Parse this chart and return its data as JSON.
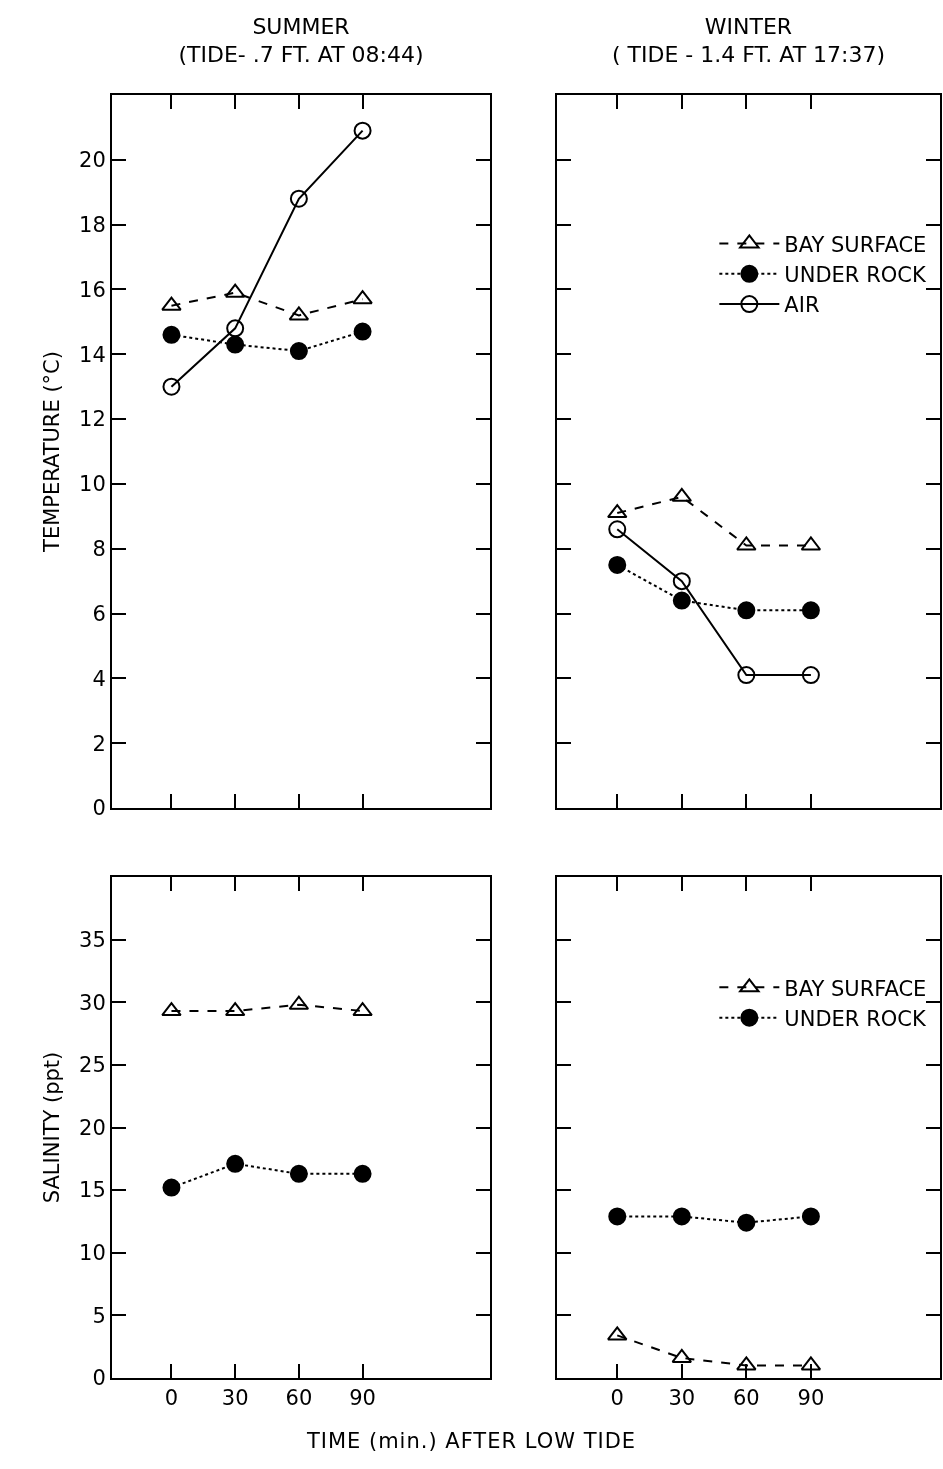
{
  "chart_data": [
    {
      "type": "line",
      "title": "SUMMER",
      "subtitle": "(TIDE- .7 FT. AT 08:44)",
      "ylabel": "TEMPERATURE (°C)",
      "x": [
        0,
        30,
        60,
        90
      ],
      "xlim": [
        -28,
        150
      ],
      "xticks": [
        0,
        30,
        60,
        90
      ],
      "ylim": [
        0,
        22
      ],
      "yticks": [
        0,
        2,
        4,
        6,
        8,
        10,
        12,
        14,
        16,
        18,
        20
      ],
      "tick_labels": "y",
      "grid": false,
      "legend": false,
      "series": [
        {
          "color": "#000000",
          "marker": "triangle",
          "line_style": "dashed",
          "values": [
            15.5,
            15.9,
            15.2,
            15.7
          ]
        },
        {
          "color": "#000000",
          "marker": "circle",
          "line_style": "dotted",
          "values": [
            14.6,
            14.3,
            14.1,
            14.7
          ]
        },
        {
          "color": "#000000",
          "marker": "circle",
          "line_style": "solid",
          "values": [
            13.0,
            14.8,
            18.8,
            20.9
          ]
        }
      ]
    },
    {
      "type": "line",
      "title": "WINTER",
      "subtitle": "( TIDE - 1.4 FT. AT 17:37)",
      "x": [
        0,
        30,
        60,
        90
      ],
      "xlim": [
        -28,
        150
      ],
      "xticks": [
        0,
        30,
        60,
        90
      ],
      "ylim": [
        0,
        22
      ],
      "yticks": [
        0,
        2,
        4,
        6,
        8,
        10,
        12,
        14,
        16,
        18,
        20
      ],
      "tick_labels": false,
      "grid": false,
      "legend": "top right",
      "series": [
        {
          "name": "BAY SURFACE",
          "color": "#000000",
          "marker": "triangle",
          "line_style": "dashed",
          "values": [
            9.1,
            9.6,
            8.1,
            8.1
          ]
        },
        {
          "name": "UNDER ROCK",
          "color": "#000000",
          "marker": "circle",
          "line_style": "dotted",
          "values": [
            7.5,
            6.4,
            6.1,
            6.1
          ]
        },
        {
          "name": "AIR",
          "color": "#000000",
          "marker": "circle",
          "line_style": "solid",
          "values": [
            8.6,
            7.0,
            4.1,
            4.1
          ]
        }
      ]
    },
    {
      "type": "line",
      "ylabel": "SALINITY (ppt)",
      "xlabel": "TIME (min.) AFTER LOW TIDE",
      "x": [
        0,
        30,
        60,
        90
      ],
      "xlim": [
        -28,
        150
      ],
      "xticks": [
        0,
        30,
        60,
        90
      ],
      "ylim": [
        0,
        40
      ],
      "yticks": [
        0,
        5,
        10,
        15,
        20,
        25,
        30,
        35
      ],
      "grid": false,
      "legend": false,
      "series": [
        {
          "color": "#000000",
          "marker": "triangle",
          "line_style": "dashed",
          "values": [
            29.3,
            29.3,
            29.8,
            29.3
          ]
        },
        {
          "color": "#000000",
          "marker": "circle",
          "line_style": "dotted",
          "values": [
            15.2,
            17.1,
            16.3,
            16.3
          ]
        }
      ]
    },
    {
      "type": "line",
      "x": [
        0,
        30,
        60,
        90
      ],
      "xlim": [
        -28,
        150
      ],
      "xticks": [
        0,
        30,
        60,
        90
      ],
      "ylim": [
        0,
        40
      ],
      "yticks": [
        0,
        5,
        10,
        15,
        20,
        25,
        30,
        35
      ],
      "tick_labels": "x",
      "grid": false,
      "legend": "top right",
      "series": [
        {
          "name": "BAY SURFACE",
          "color": "#000000",
          "marker": "triangle",
          "line_style": "dashed",
          "values": [
            3.4,
            1.6,
            1.0,
            1.0
          ]
        },
        {
          "name": "UNDER ROCK",
          "color": "#000000",
          "marker": "circle",
          "line_style": "dotted",
          "values": [
            12.9,
            12.9,
            12.4,
            12.9
          ]
        }
      ]
    }
  ]
}
